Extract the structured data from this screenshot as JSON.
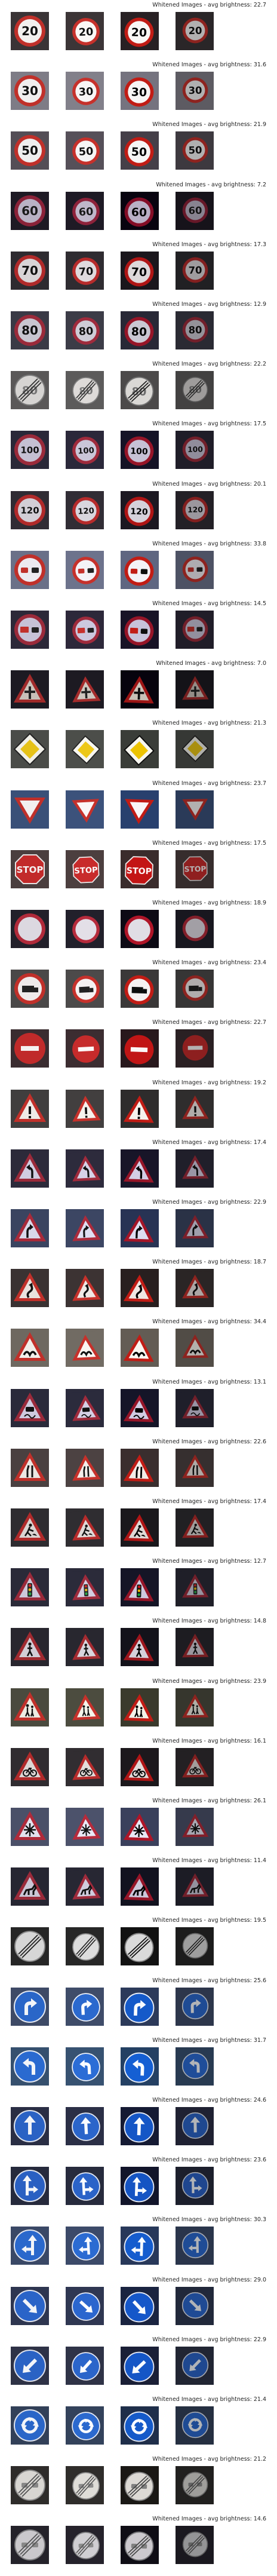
{
  "title_prefix": "Whitened Images - avg brightness: ",
  "rows": [
    {
      "brightness": "22.7",
      "sign": "speed20",
      "colors": {
        "bg": "#3a3436",
        "fg": "#f2f0ee",
        "rim": "#c0302a",
        "sym": "#111111"
      }
    },
    {
      "brightness": "31.6",
      "sign": "speed30",
      "colors": {
        "bg": "#7e7c86",
        "fg": "#f0eeee",
        "rim": "#c0302a",
        "sym": "#111111"
      }
    },
    {
      "brightness": "21.9",
      "sign": "speed50",
      "colors": {
        "bg": "#544e56",
        "fg": "#eeeeee",
        "rim": "#c0302a",
        "sym": "#111111"
      }
    },
    {
      "brightness": "7.2",
      "sign": "speed60",
      "colors": {
        "bg": "#1e1a24",
        "fg": "#b9b2c4",
        "rim": "#8a2238",
        "sym": "#1a1a1a"
      }
    },
    {
      "brightness": "17.3",
      "sign": "speed70",
      "colors": {
        "bg": "#2e2b30",
        "fg": "#d8d4d6",
        "rim": "#b02a2a",
        "sym": "#111111"
      }
    },
    {
      "brightness": "12.9",
      "sign": "speed80",
      "colors": {
        "bg": "#3a3a46",
        "fg": "#c8c6d0",
        "rim": "#9a2a3a",
        "sym": "#111111"
      }
    },
    {
      "brightness": "22.2",
      "sign": "end80",
      "colors": {
        "bg": "#5a5858",
        "fg": "#d6d4d2",
        "rim": "#7a7a7a",
        "sym": "#333333"
      }
    },
    {
      "brightness": "17.5",
      "sign": "speed100",
      "colors": {
        "bg": "#2a2838",
        "fg": "#c4c0d2",
        "rim": "#9a2a3a",
        "sym": "#111111"
      }
    },
    {
      "brightness": "20.1",
      "sign": "speed120",
      "colors": {
        "bg": "#302c34",
        "fg": "#d2ced6",
        "rim": "#b02a2a",
        "sym": "#111111"
      }
    },
    {
      "brightness": "33.8",
      "sign": "nopass",
      "colors": {
        "bg": "#6a7088",
        "fg": "#eceaf0",
        "rim": "#c0302a",
        "sym": "#c0302a"
      }
    },
    {
      "brightness": "14.5",
      "sign": "nopasstruck",
      "colors": {
        "bg": "#2c2838",
        "fg": "#c6c2d6",
        "rim": "#9a2a3a",
        "sym": "#3a3a3a"
      }
    },
    {
      "brightness": "7.0",
      "sign": "rightofway",
      "colors": {
        "bg": "#1c1a22",
        "fg": "#c8c0b8",
        "rim": "#a02a2a",
        "sym": "#222222"
      }
    },
    {
      "brightness": "21.3",
      "sign": "priority",
      "colors": {
        "bg": "#4a4c48",
        "fg": "#f0efe8",
        "rim": "#222222",
        "sym": "#e6c218"
      }
    },
    {
      "brightness": "23.7",
      "sign": "yield",
      "colors": {
        "bg": "#3a5078",
        "fg": "#f2f0f0",
        "rim": "#c0302a",
        "sym": "#f2f0f0"
      }
    },
    {
      "brightness": "17.5",
      "sign": "stop",
      "colors": {
        "bg": "#4a3e3e",
        "fg": "#c22a2a",
        "rim": "#e6e2e2",
        "sym": "#f4f0f0"
      }
    },
    {
      "brightness": "18.9",
      "sign": "novehicles",
      "colors": {
        "bg": "#22202a",
        "fg": "#dcd8e0",
        "rim": "#b02a3a",
        "sym": "#dcd8e0"
      }
    },
    {
      "brightness": "23.4",
      "sign": "notrucks",
      "colors": {
        "bg": "#4a4848",
        "fg": "#eeeaea",
        "rim": "#c0302a",
        "sym": "#222222"
      }
    },
    {
      "brightness": "22.7",
      "sign": "noentry",
      "colors": {
        "bg": "#3a2c30",
        "fg": "#c02a2a",
        "rim": "#a02020",
        "sym": "#f4f0f0"
      }
    },
    {
      "brightness": "19.2",
      "sign": "caution",
      "colors": {
        "bg": "#403e3e",
        "fg": "#eeeae6",
        "rim": "#c0302a",
        "sym": "#111111"
      }
    },
    {
      "brightness": "17.4",
      "sign": "curveleft",
      "colors": {
        "bg": "#2c2a3a",
        "fg": "#d0cce0",
        "rim": "#9a2a3a",
        "sym": "#111111"
      }
    },
    {
      "brightness": "22.9",
      "sign": "curveright",
      "colors": {
        "bg": "#3a4460",
        "fg": "#d8d8ea",
        "rim": "#a82a3a",
        "sym": "#111111"
      }
    },
    {
      "brightness": "18.7",
      "sign": "doublecurve",
      "colors": {
        "bg": "#3a3232",
        "fg": "#e8e2de",
        "rim": "#c0302a",
        "sym": "#111111"
      }
    },
    {
      "brightness": "34.4",
      "sign": "bumpy",
      "colors": {
        "bg": "#6e6860",
        "fg": "#f2efea",
        "rim": "#c0302a",
        "sym": "#111111"
      }
    },
    {
      "brightness": "13.1",
      "sign": "slippery",
      "colors": {
        "bg": "#2a2a3a",
        "fg": "#cecade",
        "rim": "#9a2a3a",
        "sym": "#111111"
      }
    },
    {
      "brightness": "22.6",
      "sign": "narrows",
      "colors": {
        "bg": "#4a4040",
        "fg": "#ebe6e2",
        "rim": "#c0302a",
        "sym": "#111111"
      }
    },
    {
      "brightness": "17.4",
      "sign": "roadwork",
      "colors": {
        "bg": "#2e2c30",
        "fg": "#dad4d2",
        "rim": "#b02a2a",
        "sym": "#111111"
      }
    },
    {
      "brightness": "12.7",
      "sign": "signals",
      "colors": {
        "bg": "#2a2a38",
        "fg": "#ccc8da",
        "rim": "#9a2a3a",
        "sym": "#2a2a2a"
      }
    },
    {
      "brightness": "14.8",
      "sign": "pedestrians",
      "colors": {
        "bg": "#28262e",
        "fg": "#d2ced6",
        "rim": "#a02a30",
        "sym": "#111111"
      }
    },
    {
      "brightness": "23.9",
      "sign": "children",
      "colors": {
        "bg": "#4a4a3e",
        "fg": "#ecebe2",
        "rim": "#c0302a",
        "sym": "#111111"
      }
    },
    {
      "brightness": "16.1",
      "sign": "bicycles",
      "colors": {
        "bg": "#302c30",
        "fg": "#dcd6d4",
        "rim": "#b02a2a",
        "sym": "#111111"
      }
    },
    {
      "brightness": "26.1",
      "sign": "snow",
      "colors": {
        "bg": "#4a5068",
        "fg": "#e2e2ee",
        "rim": "#b02a3a",
        "sym": "#111111"
      }
    },
    {
      "brightness": "11.4",
      "sign": "animals",
      "colors": {
        "bg": "#262632",
        "fg": "#cac6d6",
        "rim": "#9a2a3a",
        "sym": "#111111"
      }
    },
    {
      "brightness": "19.5",
      "sign": "endlimits",
      "colors": {
        "bg": "#262626",
        "fg": "#d6d6d6",
        "rim": "#8a8a8a",
        "sym": "#222222"
      }
    },
    {
      "brightness": "25.6",
      "sign": "turnright",
      "colors": {
        "bg": "#3e4a66",
        "fg": "#2a66c8",
        "rim": "#e6eaf2",
        "sym": "#f2f4f8"
      }
    },
    {
      "brightness": "31.7",
      "sign": "turnleft",
      "colors": {
        "bg": "#36506e",
        "fg": "#2a6ad0",
        "rim": "#e6eaf2",
        "sym": "#f2f4f8"
      }
    },
    {
      "brightness": "24.6",
      "sign": "aheadonly",
      "colors": {
        "bg": "#2a2e44",
        "fg": "#2a62c4",
        "rim": "#dfe4ee",
        "sym": "#f2f4f8"
      }
    },
    {
      "brightness": "23.6",
      "sign": "straightright",
      "colors": {
        "bg": "#262a3c",
        "fg": "#2a60c2",
        "rim": "#dfe4ee",
        "sym": "#f2f4f8"
      }
    },
    {
      "brightness": "30.3",
      "sign": "straightleft",
      "colors": {
        "bg": "#3a4866",
        "fg": "#2a68cc",
        "rim": "#e2e6f0",
        "sym": "#f2f4f8"
      }
    },
    {
      "brightness": "29.0",
      "sign": "keepright",
      "colors": {
        "bg": "#2e3650",
        "fg": "#2a64c8",
        "rim": "#e0e4ee",
        "sym": "#f2f4f8"
      }
    },
    {
      "brightness": "22.9",
      "sign": "keepleft",
      "colors": {
        "bg": "#2e3246",
        "fg": "#2a62c4",
        "rim": "#dfe2ec",
        "sym": "#f2f4f8"
      }
    },
    {
      "brightness": "21.4",
      "sign": "roundabout",
      "colors": {
        "bg": "#324058",
        "fg": "#2a66c8",
        "rim": "#e0e4ee",
        "sym": "#f2f4f8"
      }
    },
    {
      "brightness": "21.2",
      "sign": "endnopass",
      "colors": {
        "bg": "#2e2c2a",
        "fg": "#d8d6d2",
        "rim": "#8a8a8a",
        "sym": "#555555"
      }
    },
    {
      "brightness": "14.6",
      "sign": "endnopasstruck",
      "colors": {
        "bg": "#24222a",
        "fg": "#cac8cc",
        "rim": "#7e7e80",
        "sym": "#555555"
      }
    }
  ]
}
